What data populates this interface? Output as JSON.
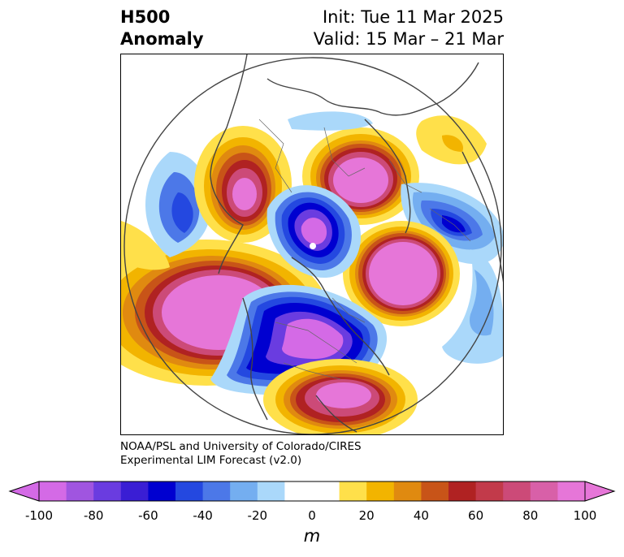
{
  "header": {
    "title_line1": "H500",
    "title_line2": "Anomaly",
    "init_text": "Init: Tue 11 Mar 2025",
    "valid_text": "Valid: 15 Mar – 21 Mar"
  },
  "credit": {
    "line1": "NOAA/PSL and University of Colorado/CIRES",
    "line2": "Experimental LIM Forecast (v2.0)"
  },
  "colorbar": {
    "unit": "m",
    "ticks": [
      "-100",
      "-80",
      "-60",
      "-40",
      "-20",
      "0",
      "20",
      "40",
      "60",
      "80",
      "100"
    ],
    "colors": [
      "#d46ae6",
      "#a055e0",
      "#6a3ce0",
      "#3a1ed4",
      "#0000d0",
      "#2448e0",
      "#4c78e8",
      "#74aef0",
      "#aad8fa",
      "#ffffff",
      "#ffffff",
      "#ffe04a",
      "#f2b400",
      "#e08a10",
      "#c85418",
      "#b02222",
      "#c23a4a",
      "#cc4a78",
      "#d860a8",
      "#e676d8"
    ]
  },
  "map": {
    "description_icons": [
      "coastline-outline",
      "country-borders"
    ],
    "anomalies": [
      {
        "sign": "positive",
        "magnitude": 100,
        "region": "north-pacific"
      },
      {
        "sign": "positive",
        "magnitude": 90,
        "region": "eastern-north-america"
      },
      {
        "sign": "positive",
        "magnitude": 80,
        "region": "north-atlantic"
      },
      {
        "sign": "positive",
        "magnitude": 80,
        "region": "eastern-siberia"
      },
      {
        "sign": "positive",
        "magnitude": 80,
        "region": "central-asia"
      },
      {
        "sign": "positive",
        "magnitude": 80,
        "region": "southeastern-united-states"
      },
      {
        "sign": "negative",
        "magnitude": -70,
        "region": "central-arctic"
      },
      {
        "sign": "negative",
        "magnitude": -70,
        "region": "western-north-america"
      },
      {
        "sign": "negative",
        "magnitude": -70,
        "region": "europe"
      },
      {
        "sign": "negative",
        "magnitude": -50,
        "region": "east-asia"
      },
      {
        "sign": "positive",
        "magnitude": 20,
        "region": "north-africa"
      }
    ]
  }
}
